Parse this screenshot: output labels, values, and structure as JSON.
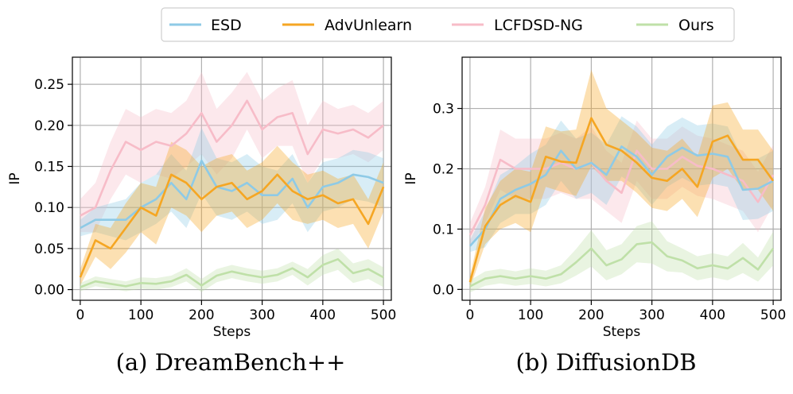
{
  "legend": {
    "items": [
      {
        "name": "ESD",
        "color": "#8ecae6"
      },
      {
        "name": "AdvUnlearn",
        "color": "#f5a623"
      },
      {
        "name": "LCFDSD-NG",
        "color": "#f7bcc8"
      },
      {
        "name": "Ours",
        "color": "#bfe0a8"
      }
    ]
  },
  "chart_data": [
    {
      "type": "line",
      "caption": "(a) DreamBench++",
      "xlabel": "Steps",
      "ylabel": "IP",
      "xlim": [
        -13,
        513
      ],
      "ylim": [
        -0.013,
        0.283
      ],
      "xticks": [
        0,
        100,
        200,
        300,
        400,
        500
      ],
      "yticks": [
        0.0,
        0.05,
        0.1,
        0.15,
        0.2,
        0.25
      ],
      "ytick_labels": [
        "0.00",
        "0.05",
        "0.10",
        "0.15",
        "0.20",
        "0.25"
      ],
      "grid": true,
      "x": [
        0,
        25,
        50,
        75,
        100,
        125,
        150,
        175,
        200,
        225,
        250,
        275,
        300,
        325,
        350,
        375,
        400,
        425,
        450,
        475,
        500
      ],
      "series": [
        {
          "name": "LCFDSD-NG",
          "color": "#f7bcc8",
          "values": [
            0.09,
            0.1,
            0.145,
            0.18,
            0.17,
            0.18,
            0.175,
            0.19,
            0.215,
            0.18,
            0.2,
            0.23,
            0.195,
            0.21,
            0.215,
            0.165,
            0.195,
            0.19,
            0.195,
            0.185,
            0.2
          ],
          "band": [
            0.02,
            0.03,
            0.035,
            0.04,
            0.04,
            0.04,
            0.04,
            0.04,
            0.05,
            0.04,
            0.04,
            0.035,
            0.035,
            0.035,
            0.04,
            0.035,
            0.035,
            0.03,
            0.03,
            0.03,
            0.03
          ]
        },
        {
          "name": "ESD",
          "color": "#8ecae6",
          "values": [
            0.075,
            0.085,
            0.085,
            0.085,
            0.1,
            0.11,
            0.13,
            0.11,
            0.157,
            0.125,
            0.12,
            0.13,
            0.115,
            0.115,
            0.135,
            0.1,
            0.125,
            0.13,
            0.14,
            0.137,
            0.13
          ],
          "band": [
            0.01,
            0.015,
            0.02,
            0.025,
            0.03,
            0.03,
            0.035,
            0.035,
            0.04,
            0.035,
            0.035,
            0.035,
            0.035,
            0.03,
            0.03,
            0.03,
            0.03,
            0.03,
            0.03,
            0.03,
            0.03
          ]
        },
        {
          "name": "AdvUnlearn",
          "color": "#f5a623",
          "values": [
            0.015,
            0.06,
            0.05,
            0.075,
            0.1,
            0.09,
            0.14,
            0.13,
            0.11,
            0.125,
            0.13,
            0.11,
            0.12,
            0.14,
            0.12,
            0.11,
            0.115,
            0.105,
            0.11,
            0.08,
            0.125
          ],
          "band": [
            0.01,
            0.02,
            0.025,
            0.03,
            0.03,
            0.035,
            0.04,
            0.04,
            0.04,
            0.035,
            0.035,
            0.035,
            0.035,
            0.035,
            0.035,
            0.03,
            0.03,
            0.03,
            0.03,
            0.03,
            0.03
          ]
        },
        {
          "name": "Ours",
          "color": "#bfe0a8",
          "values": [
            0.003,
            0.01,
            0.007,
            0.004,
            0.008,
            0.007,
            0.01,
            0.018,
            0.005,
            0.017,
            0.022,
            0.018,
            0.015,
            0.018,
            0.026,
            0.015,
            0.03,
            0.037,
            0.02,
            0.025,
            0.015
          ],
          "band": [
            0.005,
            0.006,
            0.006,
            0.006,
            0.007,
            0.007,
            0.007,
            0.008,
            0.008,
            0.008,
            0.008,
            0.008,
            0.008,
            0.008,
            0.008,
            0.01,
            0.012,
            0.013,
            0.012,
            0.012,
            0.012
          ]
        }
      ]
    },
    {
      "type": "line",
      "caption": "(b) DiffusionDB",
      "xlabel": "Steps",
      "ylabel": "IP",
      "xlim": [
        -13,
        513
      ],
      "ylim": [
        -0.018,
        0.385
      ],
      "xticks": [
        0,
        100,
        200,
        300,
        400,
        500
      ],
      "yticks": [
        0.0,
        0.1,
        0.2,
        0.3
      ],
      "ytick_labels": [
        "0.0",
        "0.1",
        "0.2",
        "0.3"
      ],
      "grid": true,
      "x": [
        0,
        25,
        50,
        75,
        100,
        125,
        150,
        175,
        200,
        225,
        250,
        275,
        300,
        325,
        350,
        375,
        400,
        425,
        450,
        475,
        500
      ],
      "series": [
        {
          "name": "LCFDSD-NG",
          "color": "#f7bcc8",
          "values": [
            0.09,
            0.14,
            0.215,
            0.2,
            0.2,
            0.2,
            0.21,
            0.2,
            0.21,
            0.18,
            0.16,
            0.23,
            0.2,
            0.2,
            0.22,
            0.205,
            0.2,
            0.19,
            0.18,
            0.145,
            0.19
          ],
          "band": [
            0.02,
            0.03,
            0.05,
            0.05,
            0.05,
            0.05,
            0.05,
            0.05,
            0.06,
            0.05,
            0.05,
            0.05,
            0.05,
            0.05,
            0.05,
            0.05,
            0.05,
            0.05,
            0.05,
            0.05,
            0.05
          ]
        },
        {
          "name": "ESD",
          "color": "#8ecae6",
          "values": [
            0.072,
            0.1,
            0.15,
            0.165,
            0.175,
            0.19,
            0.23,
            0.2,
            0.21,
            0.19,
            0.237,
            0.22,
            0.19,
            0.22,
            0.235,
            0.222,
            0.225,
            0.22,
            0.165,
            0.167,
            0.18
          ],
          "band": [
            0.01,
            0.03,
            0.04,
            0.04,
            0.05,
            0.05,
            0.05,
            0.05,
            0.05,
            0.05,
            0.05,
            0.05,
            0.05,
            0.05,
            0.05,
            0.05,
            0.05,
            0.05,
            0.05,
            0.05,
            0.05
          ]
        },
        {
          "name": "AdvUnlearn",
          "color": "#f5a623",
          "values": [
            0.012,
            0.105,
            0.14,
            0.155,
            0.145,
            0.22,
            0.212,
            0.21,
            0.284,
            0.24,
            0.23,
            0.21,
            0.185,
            0.18,
            0.2,
            0.17,
            0.245,
            0.255,
            0.215,
            0.215,
            0.18
          ],
          "band": [
            0.01,
            0.03,
            0.04,
            0.045,
            0.05,
            0.05,
            0.05,
            0.055,
            0.08,
            0.06,
            0.05,
            0.05,
            0.05,
            0.05,
            0.05,
            0.05,
            0.06,
            0.055,
            0.05,
            0.05,
            0.05
          ]
        },
        {
          "name": "Ours",
          "color": "#bfe0a8",
          "values": [
            0.005,
            0.018,
            0.022,
            0.018,
            0.022,
            0.018,
            0.025,
            0.045,
            0.068,
            0.04,
            0.05,
            0.075,
            0.078,
            0.055,
            0.048,
            0.035,
            0.04,
            0.035,
            0.052,
            0.033,
            0.068
          ],
          "band": [
            0.01,
            0.012,
            0.012,
            0.012,
            0.013,
            0.013,
            0.015,
            0.022,
            0.03,
            0.025,
            0.025,
            0.03,
            0.035,
            0.025,
            0.02,
            0.02,
            0.02,
            0.02,
            0.025,
            0.02,
            0.028
          ]
        }
      ]
    }
  ]
}
